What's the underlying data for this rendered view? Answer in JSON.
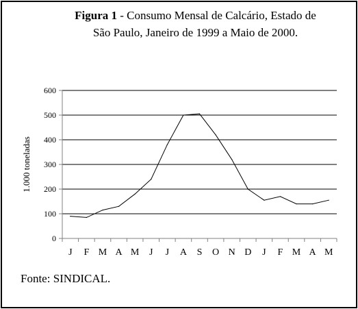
{
  "title": {
    "label": "Figura 1",
    "separator": " - ",
    "text_line1": "Consumo Mensal de Calcário, Estado de",
    "text_line2": "São Paulo, Janeiro de 1999 a Maio de 2000."
  },
  "source": "Fonte: SINDICAL.",
  "chart_data": {
    "type": "line",
    "title": "Figura 1 - Consumo Mensal de Calcário, Estado de São Paulo, Janeiro de 1999 a Maio de 2000.",
    "xlabel": "",
    "ylabel": "1.000 toneladas",
    "ylim": [
      0,
      600
    ],
    "yticks": [
      0,
      100,
      200,
      300,
      400,
      500,
      600
    ],
    "grid": true,
    "categories": [
      "J",
      "F",
      "M",
      "A",
      "M",
      "J",
      "J",
      "A",
      "S",
      "O",
      "N",
      "D",
      "J",
      "F",
      "M",
      "A",
      "M"
    ],
    "series": [
      {
        "values": [
          90,
          85,
          115,
          130,
          180,
          240,
          380,
          500,
          505,
          420,
          320,
          200,
          155,
          170,
          140,
          140,
          155
        ]
      }
    ],
    "colors": {
      "line": "#000000",
      "grid": "#000000",
      "axis": "#808080"
    }
  }
}
